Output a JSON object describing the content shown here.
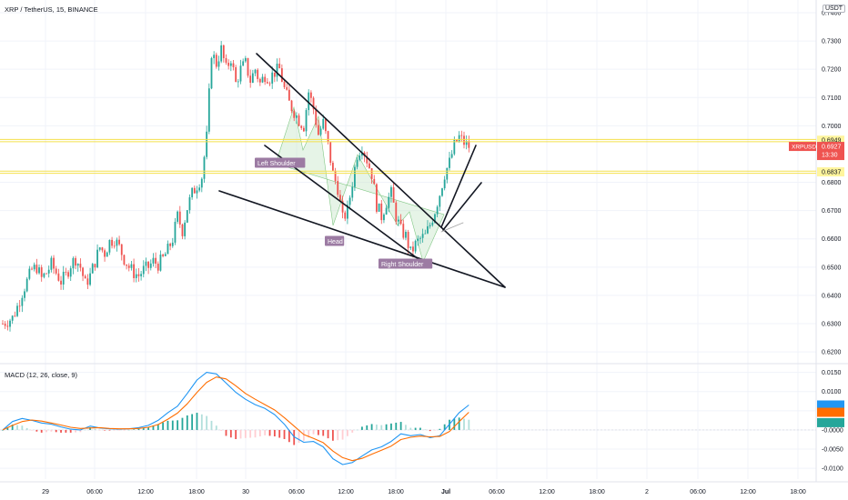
{
  "header": {
    "symbol": "XRP / TetherUS, 15, BINANCE",
    "currency": "USDT",
    "macd_label": "MACD (12, 26, close, 9)"
  },
  "price_axis": {
    "ticks": [
      "0.7400",
      "0.7300",
      "0.7200",
      "0.7100",
      "0.7000",
      "0.6800",
      "0.6700",
      "0.6600",
      "0.6500",
      "0.6400",
      "0.6300",
      "0.6200"
    ],
    "tick_values": [
      0.74,
      0.73,
      0.72,
      0.71,
      0.7,
      0.68,
      0.67,
      0.66,
      0.65,
      0.64,
      0.63,
      0.62
    ],
    "ylim": [
      0.6165,
      0.7445
    ]
  },
  "macd_axis": {
    "ticks": [
      "0.0150",
      "0.0100",
      "0.0050",
      "-0.0000",
      "-0.0050",
      "-0.0100"
    ],
    "tick_values": [
      0.015,
      0.01,
      0.005,
      0,
      -0.005,
      -0.01
    ],
    "ylim": [
      -0.0128,
      0.0168
    ]
  },
  "time_axis": {
    "labels": [
      "29",
      "06:00",
      "12:00",
      "18:00",
      "30",
      "06:00",
      "12:00",
      "18:00",
      "Jul",
      "06:00",
      "12:00",
      "18:00",
      "2",
      "06:00",
      "12:00",
      "18:00"
    ],
    "bold": [
      false,
      false,
      false,
      false,
      false,
      false,
      false,
      false,
      true,
      false,
      false,
      false,
      false,
      false,
      false,
      false
    ]
  },
  "price_tags": {
    "upper_level": "0.6949",
    "current_symbol": "XRPUSDT",
    "current_price": "0.6927",
    "countdown": "13:30",
    "lower_level": "0.6837"
  },
  "pattern_labels": {
    "left": "Left Shoulder",
    "head": "Head",
    "right": "Right Shoulder"
  },
  "colors": {
    "up": "#26a69a",
    "down": "#ef5350",
    "macd_line": "#2196f3",
    "signal_line": "#ff6d00",
    "level_line": "#f4e04d",
    "current_tag": "#ef5350",
    "level_tag": "#fff59d",
    "pattern_fill": "#c8e6c9",
    "pattern_label_bg": "#9c7ba3"
  },
  "chart_data": [
    {
      "type": "candlestick",
      "title": "XRP / TetherUS, 15, BINANCE",
      "x_labels": [
        "29",
        "06:00",
        "12:00",
        "18:00",
        "30",
        "06:00",
        "12:00",
        "18:00",
        "Jul",
        "06:00",
        "12:00",
        "18:00",
        "2",
        "06:00",
        "12:00",
        "18:00"
      ],
      "close_path": [
        [
          0,
          0.63
        ],
        [
          2,
          0.631
        ],
        [
          4,
          0.632
        ],
        [
          6,
          0.636
        ],
        [
          8,
          0.641
        ],
        [
          10,
          0.645
        ],
        [
          12,
          0.649
        ],
        [
          14,
          0.65
        ],
        [
          16,
          0.646
        ],
        [
          18,
          0.648
        ],
        [
          20,
          0.651
        ],
        [
          22,
          0.648
        ],
        [
          24,
          0.645
        ],
        [
          26,
          0.647
        ],
        [
          28,
          0.651
        ],
        [
          30,
          0.653
        ],
        [
          32,
          0.65
        ],
        [
          34,
          0.644
        ],
        [
          36,
          0.647
        ],
        [
          38,
          0.652
        ],
        [
          40,
          0.657
        ],
        [
          42,
          0.655
        ],
        [
          44,
          0.659
        ],
        [
          46,
          0.66
        ],
        [
          48,
          0.657
        ],
        [
          50,
          0.653
        ],
        [
          52,
          0.65
        ],
        [
          54,
          0.648
        ],
        [
          56,
          0.647
        ],
        [
          58,
          0.649
        ],
        [
          60,
          0.65
        ],
        [
          62,
          0.652
        ],
        [
          64,
          0.651
        ],
        [
          66,
          0.653
        ],
        [
          68,
          0.656
        ],
        [
          70,
          0.66
        ],
        [
          72,
          0.668
        ],
        [
          74,
          0.663
        ],
        [
          76,
          0.671
        ],
        [
          78,
          0.676
        ],
        [
          80,
          0.679
        ],
        [
          82,
          0.682
        ],
        [
          84,
          0.696
        ],
        [
          86,
          0.726
        ],
        [
          88,
          0.722
        ],
        [
          90,
          0.727
        ],
        [
          92,
          0.72
        ],
        [
          94,
          0.724
        ],
        [
          96,
          0.715
        ],
        [
          98,
          0.72
        ],
        [
          100,
          0.722
        ],
        [
          102,
          0.716
        ],
        [
          104,
          0.72
        ],
        [
          106,
          0.715
        ],
        [
          108,
          0.718
        ],
        [
          110,
          0.717
        ],
        [
          112,
          0.719
        ],
        [
          114,
          0.72
        ],
        [
          116,
          0.713
        ],
        [
          118,
          0.708
        ],
        [
          120,
          0.705
        ],
        [
          122,
          0.702
        ],
        [
          124,
          0.7
        ],
        [
          126,
          0.712
        ],
        [
          128,
          0.706
        ],
        [
          130,
          0.697
        ],
        [
          132,
          0.701
        ],
        [
          134,
          0.693
        ],
        [
          136,
          0.683
        ],
        [
          138,
          0.678
        ],
        [
          140,
          0.667
        ],
        [
          142,
          0.67
        ],
        [
          144,
          0.68
        ],
        [
          146,
          0.69
        ],
        [
          148,
          0.693
        ],
        [
          150,
          0.688
        ],
        [
          152,
          0.683
        ],
        [
          154,
          0.672
        ],
        [
          156,
          0.668
        ],
        [
          158,
          0.673
        ],
        [
          160,
          0.676
        ],
        [
          162,
          0.668
        ],
        [
          164,
          0.663
        ],
        [
          166,
          0.661
        ],
        [
          168,
          0.655
        ],
        [
          170,
          0.658
        ],
        [
          172,
          0.66
        ],
        [
          174,
          0.661
        ],
        [
          176,
          0.665
        ],
        [
          178,
          0.67
        ],
        [
          180,
          0.676
        ],
        [
          182,
          0.683
        ],
        [
          184,
          0.687
        ],
        [
          186,
          0.693
        ],
        [
          188,
          0.696
        ],
        [
          190,
          0.694
        ],
        [
          192,
          0.6927
        ]
      ],
      "price_levels": [
        0.6949,
        0.6837
      ],
      "current_price": 0.6927
    },
    {
      "type": "line",
      "title": "MACD (12, 26, close, 9)",
      "series": [
        {
          "name": "",
          "color": "#2196f3",
          "values": [
            [
              0,
              0.0
            ],
            [
              4,
              0.0022
            ],
            [
              8,
              0.003
            ],
            [
              12,
              0.0025
            ],
            [
              16,
              0.0018
            ],
            [
              20,
              0.0015
            ],
            [
              24,
              0.0008
            ],
            [
              28,
              0.0002
            ],
            [
              32,
              0.0
            ],
            [
              36,
              0.001
            ],
            [
              40,
              0.0005
            ],
            [
              44,
              0.0003
            ],
            [
              48,
              0.0002
            ],
            [
              52,
              0.0003
            ],
            [
              56,
              0.0006
            ],
            [
              60,
              0.0012
            ],
            [
              64,
              0.0025
            ],
            [
              68,
              0.0045
            ],
            [
              72,
              0.0062
            ],
            [
              76,
              0.0095
            ],
            [
              80,
              0.013
            ],
            [
              84,
              0.015
            ],
            [
              88,
              0.0146
            ],
            [
              92,
              0.0122
            ],
            [
              96,
              0.0098
            ],
            [
              100,
              0.008
            ],
            [
              104,
              0.0066
            ],
            [
              108,
              0.0056
            ],
            [
              112,
              0.004
            ],
            [
              116,
              0.0015
            ],
            [
              120,
              -0.0018
            ],
            [
              124,
              -0.0032
            ],
            [
              128,
              -0.003
            ],
            [
              132,
              -0.0044
            ],
            [
              136,
              -0.0075
            ],
            [
              140,
              -0.009
            ],
            [
              144,
              -0.0085
            ],
            [
              148,
              -0.0068
            ],
            [
              152,
              -0.0052
            ],
            [
              156,
              -0.0044
            ],
            [
              160,
              -0.003
            ],
            [
              164,
              -0.001
            ],
            [
              168,
              -0.0015
            ],
            [
              172,
              -0.0012
            ],
            [
              176,
              -0.002
            ],
            [
              180,
              -0.0015
            ],
            [
              184,
              0.0015
            ],
            [
              188,
              0.0045
            ],
            [
              192,
              0.0065
            ]
          ]
        },
        {
          "name": "",
          "color": "#ff6d00",
          "values": [
            [
              0,
              0.0
            ],
            [
              4,
              0.0012
            ],
            [
              8,
              0.0022
            ],
            [
              12,
              0.0026
            ],
            [
              16,
              0.0023
            ],
            [
              20,
              0.0018
            ],
            [
              24,
              0.0013
            ],
            [
              28,
              0.0007
            ],
            [
              32,
              0.0004
            ],
            [
              36,
              0.0005
            ],
            [
              40,
              0.0006
            ],
            [
              44,
              0.0004
            ],
            [
              48,
              0.0003
            ],
            [
              52,
              0.0003
            ],
            [
              56,
              0.0004
            ],
            [
              60,
              0.0007
            ],
            [
              64,
              0.0014
            ],
            [
              68,
              0.0028
            ],
            [
              72,
              0.0044
            ],
            [
              76,
              0.0068
            ],
            [
              80,
              0.0098
            ],
            [
              84,
              0.0124
            ],
            [
              88,
              0.0138
            ],
            [
              92,
              0.0133
            ],
            [
              96,
              0.0115
            ],
            [
              100,
              0.0095
            ],
            [
              104,
              0.008
            ],
            [
              108,
              0.0066
            ],
            [
              112,
              0.0052
            ],
            [
              116,
              0.0032
            ],
            [
              120,
              0.001
            ],
            [
              124,
              -0.0012
            ],
            [
              128,
              -0.0022
            ],
            [
              132,
              -0.0033
            ],
            [
              136,
              -0.0055
            ],
            [
              140,
              -0.0072
            ],
            [
              144,
              -0.008
            ],
            [
              148,
              -0.0074
            ],
            [
              152,
              -0.0063
            ],
            [
              156,
              -0.0053
            ],
            [
              160,
              -0.0042
            ],
            [
              164,
              -0.0025
            ],
            [
              168,
              -0.0019
            ],
            [
              172,
              -0.0016
            ],
            [
              176,
              -0.0018
            ],
            [
              180,
              -0.0017
            ],
            [
              184,
              -0.0004
            ],
            [
              188,
              0.0022
            ],
            [
              192,
              0.0046
            ]
          ]
        }
      ],
      "histogram": "macd - signal"
    }
  ]
}
